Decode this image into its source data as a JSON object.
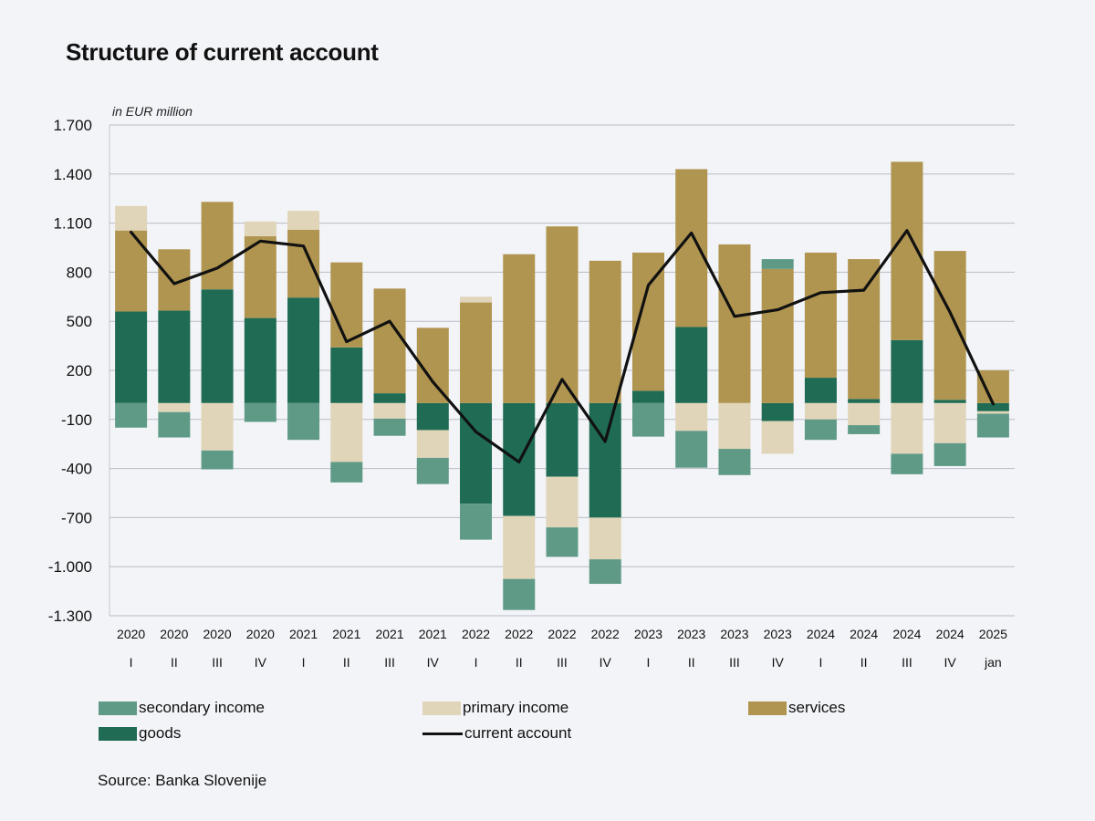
{
  "title": "Structure of current account",
  "unit_label": "in  EUR million",
  "source": "Source: Banka Slovenije",
  "legend": [
    {
      "key": "secondary",
      "label": "secondary income",
      "color": "#5f9a86"
    },
    {
      "key": "primary",
      "label": "primary income",
      "color": "#e0d5b8"
    },
    {
      "key": "services",
      "label": "services",
      "color": "#b09550"
    },
    {
      "key": "goods",
      "label": "goods",
      "color": "#1f6b54"
    },
    {
      "key": "ca",
      "label": "current account",
      "color": "#111111"
    }
  ],
  "chart_data": {
    "type": "bar",
    "stacked": true,
    "title": "Structure of current account",
    "ylabel": "in  EUR million",
    "ylim": [
      -1300,
      1700
    ],
    "yticks": [
      1700,
      1400,
      1100,
      800,
      500,
      200,
      -100,
      -400,
      -700,
      -1000,
      -1300
    ],
    "ytick_labels": [
      "1.700",
      "1.400",
      "1.100",
      "800",
      "500",
      "200",
      "-100",
      "-400",
      "-700",
      "-1.000",
      "-1.300"
    ],
    "categories": [
      {
        "year": "2020",
        "period": "I"
      },
      {
        "year": "2020",
        "period": "II"
      },
      {
        "year": "2020",
        "period": "III"
      },
      {
        "year": "2020",
        "period": "IV"
      },
      {
        "year": "2021",
        "period": "I"
      },
      {
        "year": "2021",
        "period": "II"
      },
      {
        "year": "2021",
        "period": "III"
      },
      {
        "year": "2021",
        "period": "IV"
      },
      {
        "year": "2022",
        "period": "I"
      },
      {
        "year": "2022",
        "period": "II"
      },
      {
        "year": "2022",
        "period": "III"
      },
      {
        "year": "2022",
        "period": "IV"
      },
      {
        "year": "2023",
        "period": "I"
      },
      {
        "year": "2023",
        "period": "II"
      },
      {
        "year": "2023",
        "period": "III"
      },
      {
        "year": "2023",
        "period": "IV"
      },
      {
        "year": "2024",
        "period": "I"
      },
      {
        "year": "2024",
        "period": "II"
      },
      {
        "year": "2024",
        "period": "III"
      },
      {
        "year": "2024",
        "period": "IV"
      },
      {
        "year": "2025",
        "period": "jan"
      }
    ],
    "series": [
      {
        "name": "goods",
        "type": "bar",
        "values": [
          560,
          565,
          695,
          520,
          645,
          340,
          60,
          -165,
          -615,
          -690,
          -450,
          -700,
          75,
          465,
          0,
          -110,
          155,
          25,
          385,
          20,
          -50
        ]
      },
      {
        "name": "services",
        "type": "bar",
        "values": [
          495,
          375,
          535,
          500,
          415,
          520,
          640,
          460,
          615,
          910,
          1080,
          870,
          845,
          965,
          970,
          820,
          765,
          855,
          1090,
          910,
          200
        ]
      },
      {
        "name": "primary income",
        "type": "bar",
        "values": [
          150,
          -55,
          -290,
          90,
          115,
          -360,
          -95,
          -170,
          35,
          -385,
          -310,
          -255,
          0,
          -170,
          -280,
          -200,
          -100,
          -135,
          -310,
          -245,
          -15
        ]
      },
      {
        "name": "secondary income",
        "type": "bar",
        "values": [
          -150,
          -155,
          -115,
          -115,
          -225,
          -125,
          -105,
          -160,
          -220,
          -190,
          -180,
          -150,
          -205,
          -225,
          -160,
          0,
          -125,
          -55,
          -125,
          -140,
          -145
        ]
      },
      {
        "name": "secondary income (positive)",
        "type": "bar",
        "values": [
          0,
          0,
          0,
          0,
          0,
          0,
          0,
          0,
          0,
          0,
          0,
          0,
          0,
          0,
          0,
          60,
          0,
          0,
          0,
          0,
          0
        ]
      },
      {
        "name": "current account",
        "type": "line",
        "values": [
          1045,
          730,
          825,
          990,
          960,
          375,
          500,
          130,
          -175,
          -360,
          145,
          -235,
          720,
          1040,
          530,
          570,
          675,
          690,
          1055,
          555,
          -5
        ]
      }
    ]
  }
}
